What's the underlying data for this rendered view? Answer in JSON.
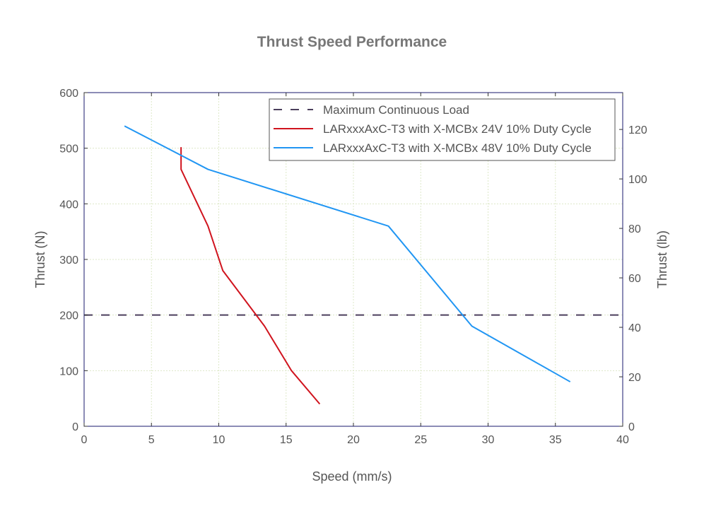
{
  "chart_data": {
    "type": "line",
    "title": "Thrust Speed Performance",
    "xlabel": "Speed (mm/s)",
    "ylabel": "Thrust (N)",
    "y2label": "Thrust (lb)",
    "xlim": [
      0,
      40
    ],
    "ylim": [
      0,
      600
    ],
    "y2lim": [
      0,
      134.9
    ],
    "xticks": [
      0,
      5,
      10,
      15,
      20,
      25,
      30,
      35,
      40
    ],
    "yticks": [
      0,
      100,
      200,
      300,
      400,
      500,
      600
    ],
    "y2ticks": [
      0,
      20,
      40,
      60,
      80,
      100,
      120
    ],
    "grid": true,
    "legend_position": "top-right",
    "series": [
      {
        "name": "Maximum Continuous Load",
        "color": "#4b3f5c",
        "style": "dashed",
        "x": [
          0,
          40
        ],
        "y": [
          200,
          200
        ]
      },
      {
        "name": "LARxxxAxC-T3 with X-MCBx 24V 10% Duty Cycle",
        "color": "#d0141e",
        "style": "solid",
        "x": [
          7.2,
          7.2,
          9.2,
          10.3,
          13.4,
          15.4,
          17.5
        ],
        "y": [
          502,
          462,
          360,
          280,
          180,
          100,
          40
        ]
      },
      {
        "name": "LARxxxAxC-T3 with X-MCBx 48V 10% Duty Cycle",
        "color": "#2196f3",
        "style": "solid",
        "x": [
          3.0,
          9.2,
          22.6,
          28.8,
          36.1
        ],
        "y": [
          540,
          462,
          360,
          180,
          80
        ]
      }
    ]
  }
}
